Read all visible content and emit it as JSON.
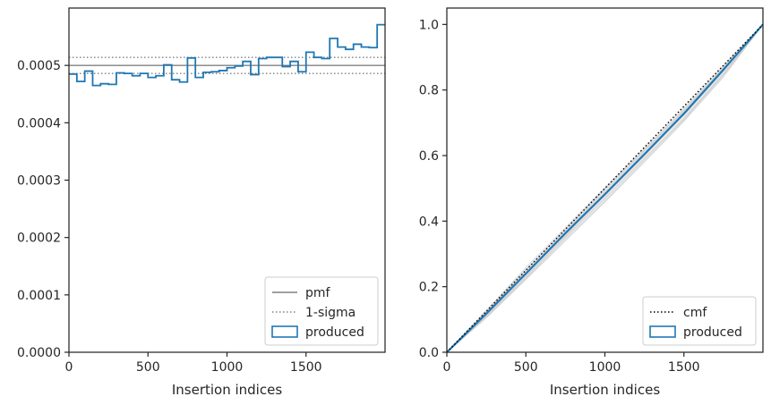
{
  "chart_data": [
    {
      "type": "histogram-step",
      "xlabel": "Insertion indices",
      "ylabel": "",
      "xlim": [
        0,
        2000
      ],
      "ylim": [
        0,
        0.0006
      ],
      "xticks": [
        "0",
        "500",
        "1000",
        "1500"
      ],
      "yticks": [
        "0.0000",
        "0.0001",
        "0.0002",
        "0.0003",
        "0.0004",
        "0.0005"
      ],
      "pmf": 0.0005,
      "sigma_band": [
        0.000486,
        0.000514
      ],
      "bin_edges": [
        0,
        50,
        100,
        150,
        200,
        250,
        300,
        350,
        400,
        450,
        500,
        550,
        600,
        650,
        700,
        750,
        800,
        850,
        900,
        950,
        1000,
        1050,
        1100,
        1150,
        1200,
        1250,
        1300,
        1350,
        1400,
        1450,
        1500,
        1550,
        1600,
        1650,
        1700,
        1750,
        1800,
        1850,
        1900,
        1950,
        2000
      ],
      "produced": [
        0.000485,
        0.000472,
        0.00049,
        0.000465,
        0.000468,
        0.000467,
        0.000487,
        0.000486,
        0.000482,
        0.000486,
        0.000479,
        0.000482,
        0.000501,
        0.000475,
        0.000471,
        0.000513,
        0.000479,
        0.000488,
        0.000489,
        0.000491,
        0.000496,
        0.000499,
        0.000507,
        0.000484,
        0.000512,
        0.000514,
        0.000514,
        0.000498,
        0.000507,
        0.000489,
        0.000523,
        0.000514,
        0.000512,
        0.000547,
        0.000532,
        0.000528,
        0.000537,
        0.000532,
        0.000531,
        0.000571
      ],
      "legend": {
        "position": "lower right",
        "entries": [
          {
            "label": "pmf",
            "style": "solid-line",
            "color": "#808080"
          },
          {
            "label": "1-sigma",
            "style": "dotted-line",
            "color": "#808080"
          },
          {
            "label": "produced",
            "style": "patch",
            "color": "#1f77b4"
          }
        ]
      }
    },
    {
      "type": "line",
      "xlabel": "Insertion indices",
      "ylabel": "",
      "xlim": [
        0,
        2000
      ],
      "ylim": [
        0,
        1.05
      ],
      "xticks": [
        "0",
        "500",
        "1000",
        "1500"
      ],
      "yticks": [
        "0.0",
        "0.2",
        "0.4",
        "0.6",
        "0.8",
        "1.0"
      ],
      "cmf": {
        "x": [
          0,
          2000
        ],
        "y": [
          0,
          1
        ]
      },
      "produced": {
        "x": [
          0,
          250,
          500,
          750,
          1000,
          1250,
          1500,
          1750,
          2000
        ],
        "y": [
          0,
          0.118,
          0.24,
          0.363,
          0.482,
          0.604,
          0.728,
          0.862,
          1.0
        ]
      },
      "grey_samples": [
        [
          0,
          0.125,
          0.252,
          0.372,
          0.495,
          0.615,
          0.74,
          0.87,
          1.0
        ],
        [
          0,
          0.112,
          0.232,
          0.35,
          0.47,
          0.59,
          0.715,
          0.85,
          1.0
        ],
        [
          0,
          0.12,
          0.246,
          0.368,
          0.49,
          0.612,
          0.735,
          0.866,
          1.0
        ],
        [
          0,
          0.108,
          0.225,
          0.345,
          0.462,
          0.585,
          0.708,
          0.845,
          1.0
        ],
        [
          0,
          0.128,
          0.258,
          0.38,
          0.502,
          0.622,
          0.745,
          0.874,
          1.0
        ],
        [
          0,
          0.115,
          0.236,
          0.356,
          0.476,
          0.598,
          0.722,
          0.856,
          1.0
        ],
        [
          0,
          0.11,
          0.228,
          0.352,
          0.468,
          0.592,
          0.712,
          0.848,
          1.0
        ],
        [
          0,
          0.122,
          0.25,
          0.375,
          0.498,
          0.618,
          0.738,
          0.868,
          1.0
        ],
        [
          0,
          0.118,
          0.242,
          0.36,
          0.485,
          0.606,
          0.73,
          0.86,
          1.0
        ],
        [
          0,
          0.105,
          0.222,
          0.34,
          0.458,
          0.58,
          0.705,
          0.84,
          1.0
        ]
      ],
      "legend": {
        "position": "lower right",
        "entries": [
          {
            "label": "cmf",
            "style": "dotted-line",
            "color": "#000000"
          },
          {
            "label": "produced",
            "style": "patch",
            "color": "#1f77b4"
          }
        ]
      }
    }
  ]
}
